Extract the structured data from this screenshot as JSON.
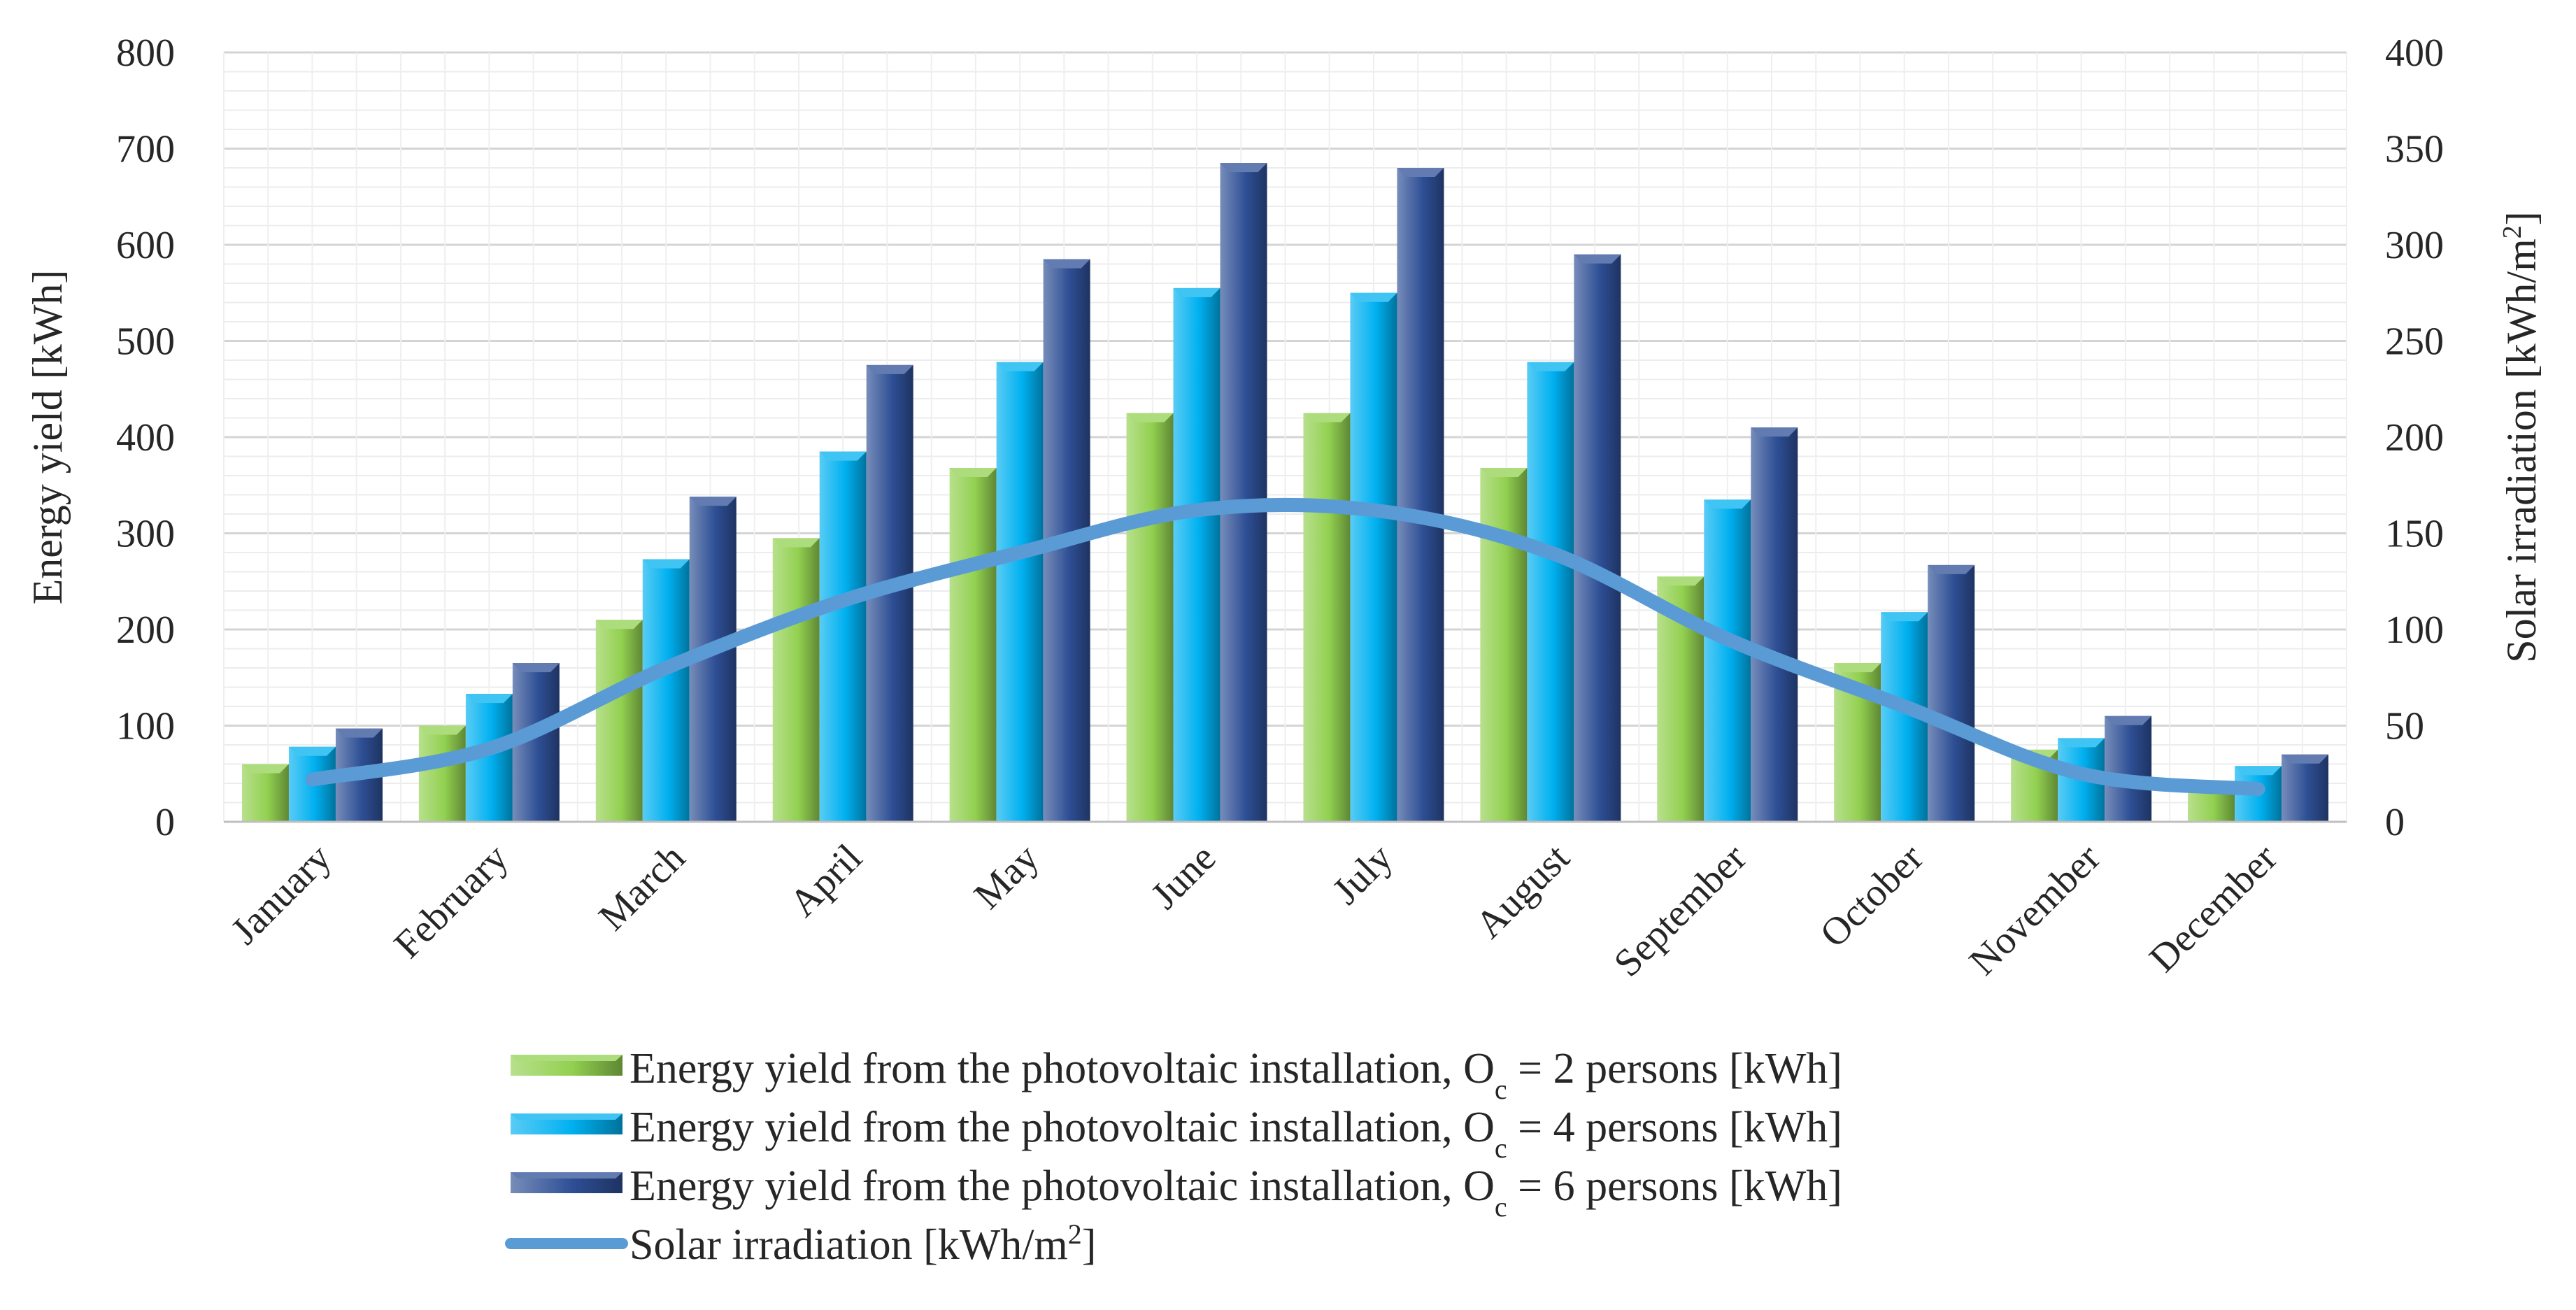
{
  "chart_data": {
    "type": "bar",
    "title": "",
    "categories": [
      "January",
      "February",
      "March",
      "April",
      "May",
      "June",
      "July",
      "August",
      "September",
      "October",
      "November",
      "December"
    ],
    "series": [
      {
        "name": "Energy yield from the photovoltaic installation, Oc = 2 persons [kWh]",
        "legend_prefix": "Energy yield from the photovoltaic installation, O",
        "legend_sub": "c",
        "legend_suffix": " = 2 persons [kWh]",
        "type": "bar",
        "axis": "left",
        "color": "#92d050",
        "values": [
          60,
          100,
          210,
          295,
          368,
          425,
          425,
          368,
          255,
          165,
          75,
          40
        ]
      },
      {
        "name": "Energy yield from the photovoltaic installation, Oc = 4 persons [kWh]",
        "legend_prefix": "Energy yield from the photovoltaic installation, O",
        "legend_sub": "c",
        "legend_suffix": " = 4 persons [kWh]",
        "type": "bar",
        "axis": "left",
        "color": "#00b0f0",
        "values": [
          78,
          133,
          273,
          385,
          478,
          555,
          550,
          478,
          335,
          218,
          87,
          58
        ]
      },
      {
        "name": "Energy yield from the photovoltaic installation, Oc = 6 persons [kWh]",
        "legend_prefix": "Energy yield from the photovoltaic installation, O",
        "legend_sub": "c",
        "legend_suffix": " = 6 persons [kWh]",
        "type": "bar",
        "axis": "left",
        "color": "#2e4f95",
        "values": [
          97,
          165,
          338,
          475,
          585,
          685,
          680,
          590,
          410,
          267,
          110,
          70
        ]
      },
      {
        "name": "Solar irradiation [kWh/m2]",
        "legend_prefix": "Solar irradiation [kWh/m",
        "legend_sup": "2",
        "legend_suffix": "]",
        "type": "line",
        "axis": "right",
        "color": "#5b9bd5",
        "values": [
          22,
          38,
          80,
          115,
          140,
          162,
          162,
          140,
          95,
          60,
          25,
          17
        ]
      }
    ],
    "y_left": {
      "label": "Energy yield [kWh]",
      "ylim": [
        0,
        800
      ],
      "ticks": [
        "0",
        "100",
        "200",
        "300",
        "400",
        "500",
        "600",
        "700",
        "800"
      ]
    },
    "y_right": {
      "label_prefix": "Solar irradiation [kWh/m",
      "label_sup": "2",
      "label_suffix": "]",
      "ylim": [
        0,
        400
      ],
      "ticks": [
        "0",
        "50",
        "100",
        "150",
        "200",
        "250",
        "300",
        "350",
        "400"
      ]
    },
    "grid": true,
    "legend_position": "bottom"
  }
}
